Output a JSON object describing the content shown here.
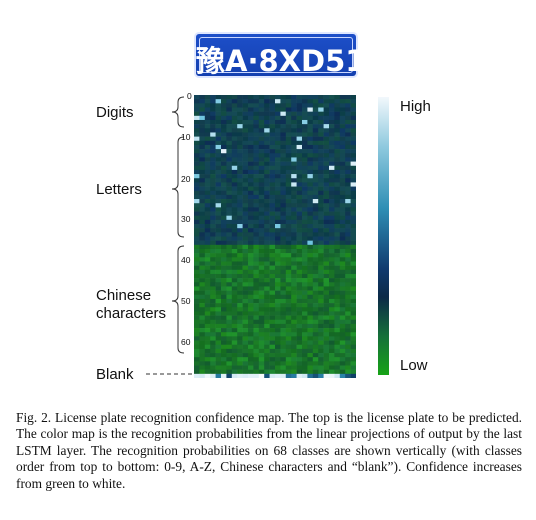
{
  "plate": {
    "text": "豫A·8XD51"
  },
  "labels": {
    "digits": "Digits",
    "letters": "Letters",
    "chinese_line1": "Chinese",
    "chinese_line2": "characters",
    "blank": "Blank"
  },
  "ticks": [
    "0",
    "10",
    "20",
    "30",
    "40",
    "50",
    "60"
  ],
  "colorbar": {
    "high": "High",
    "low": "Low"
  },
  "caption": "Fig. 2.  License plate recognition confidence map. The top is the license plate to be predicted. The color map is the recognition probabilities from the linear projections of output by the last LSTM layer. The recognition probabilities on 68 classes are shown vertically (with classes order from top to bottom: 0-9, A-Z, Chinese characters and “blank”). Confidence increases from green to white.",
  "chart_data": {
    "type": "heatmap",
    "rows": 68,
    "row_groups": [
      {
        "name": "Digits",
        "range": [
          0,
          9
        ]
      },
      {
        "name": "Letters",
        "range": [
          10,
          35
        ]
      },
      {
        "name": "Chinese characters",
        "range": [
          36,
          66
        ]
      },
      {
        "name": "Blank",
        "range": [
          67,
          67
        ]
      }
    ],
    "y_ticks": [
      0,
      10,
      20,
      30,
      40,
      50,
      60
    ],
    "scale": {
      "low": "Low",
      "high": "High"
    },
    "colors": {
      "low": "#17a317",
      "mid": "#0c2a48",
      "high": "#f2f8fc"
    }
  }
}
